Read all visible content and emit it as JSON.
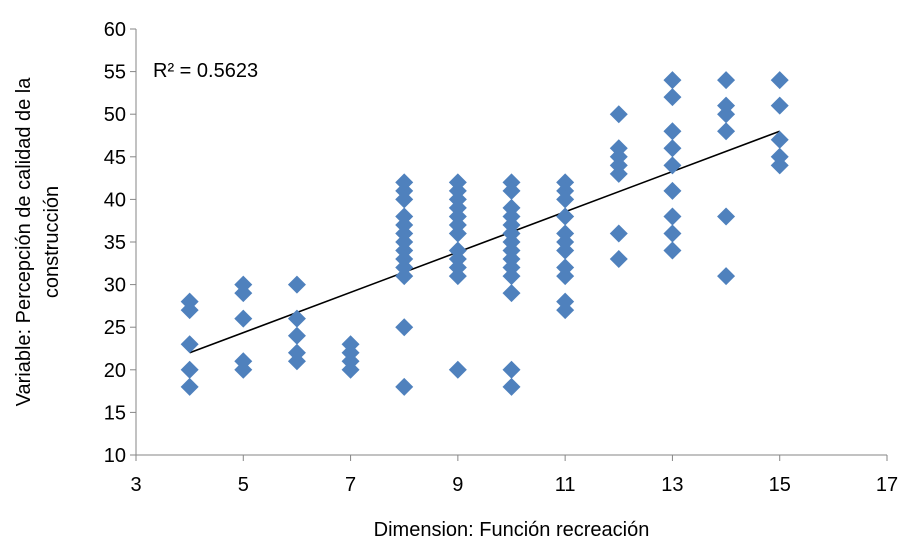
{
  "chart_data": {
    "type": "scatter",
    "title": "",
    "xlabel": "Dimension: Función recreación",
    "ylabel_lines": [
      "Variable: Percepción de calidad de la",
      "construcción"
    ],
    "xlim": [
      3,
      17
    ],
    "ylim": [
      10,
      60
    ],
    "x_ticks": [
      3,
      5,
      7,
      9,
      11,
      13,
      15,
      17
    ],
    "y_ticks": [
      10,
      15,
      20,
      25,
      30,
      35,
      40,
      45,
      50,
      55,
      60
    ],
    "grid": false,
    "legend": "none",
    "marker_color": "#4F81BD",
    "marker_shape": "diamond",
    "annotation": "R² = 0.5623",
    "trendline": {
      "type": "linear",
      "x": [
        4,
        15
      ],
      "y": [
        22,
        48
      ],
      "color": "#000000"
    },
    "series": [
      {
        "points": [
          [
            4,
            28
          ],
          [
            4,
            27
          ],
          [
            4,
            23
          ],
          [
            4,
            20
          ],
          [
            4,
            18
          ],
          [
            5,
            30
          ],
          [
            5,
            29
          ],
          [
            5,
            26
          ],
          [
            5,
            21
          ],
          [
            5,
            20
          ],
          [
            6,
            30
          ],
          [
            6,
            26
          ],
          [
            6,
            24
          ],
          [
            6,
            22
          ],
          [
            6,
            21
          ],
          [
            7,
            23
          ],
          [
            7,
            22
          ],
          [
            7,
            21
          ],
          [
            7,
            20
          ],
          [
            8,
            42
          ],
          [
            8,
            41
          ],
          [
            8,
            40
          ],
          [
            8,
            38
          ],
          [
            8,
            37
          ],
          [
            8,
            36
          ],
          [
            8,
            35
          ],
          [
            8,
            34
          ],
          [
            8,
            33
          ],
          [
            8,
            32
          ],
          [
            8,
            31
          ],
          [
            8,
            25
          ],
          [
            8,
            18
          ],
          [
            9,
            42
          ],
          [
            9,
            41
          ],
          [
            9,
            40
          ],
          [
            9,
            39
          ],
          [
            9,
            38
          ],
          [
            9,
            37
          ],
          [
            9,
            36
          ],
          [
            9,
            34
          ],
          [
            9,
            33
          ],
          [
            9,
            32
          ],
          [
            9,
            31
          ],
          [
            9,
            20
          ],
          [
            10,
            42
          ],
          [
            10,
            41
          ],
          [
            10,
            39
          ],
          [
            10,
            38
          ],
          [
            10,
            37
          ],
          [
            10,
            36
          ],
          [
            10,
            35
          ],
          [
            10,
            34
          ],
          [
            10,
            33
          ],
          [
            10,
            32
          ],
          [
            10,
            31
          ],
          [
            10,
            29
          ],
          [
            10,
            20
          ],
          [
            10,
            18
          ],
          [
            11,
            42
          ],
          [
            11,
            41
          ],
          [
            11,
            40
          ],
          [
            11,
            38
          ],
          [
            11,
            36
          ],
          [
            11,
            35
          ],
          [
            11,
            34
          ],
          [
            11,
            32
          ],
          [
            11,
            31
          ],
          [
            11,
            28
          ],
          [
            11,
            27
          ],
          [
            12,
            50
          ],
          [
            12,
            46
          ],
          [
            12,
            45
          ],
          [
            12,
            44
          ],
          [
            12,
            43
          ],
          [
            12,
            36
          ],
          [
            12,
            33
          ],
          [
            13,
            54
          ],
          [
            13,
            52
          ],
          [
            13,
            48
          ],
          [
            13,
            46
          ],
          [
            13,
            44
          ],
          [
            13,
            41
          ],
          [
            13,
            38
          ],
          [
            13,
            36
          ],
          [
            13,
            34
          ],
          [
            14,
            54
          ],
          [
            14,
            51
          ],
          [
            14,
            50
          ],
          [
            14,
            48
          ],
          [
            14,
            38
          ],
          [
            14,
            31
          ],
          [
            15,
            54
          ],
          [
            15,
            51
          ],
          [
            15,
            47
          ],
          [
            15,
            45
          ],
          [
            15,
            44
          ]
        ]
      }
    ]
  }
}
